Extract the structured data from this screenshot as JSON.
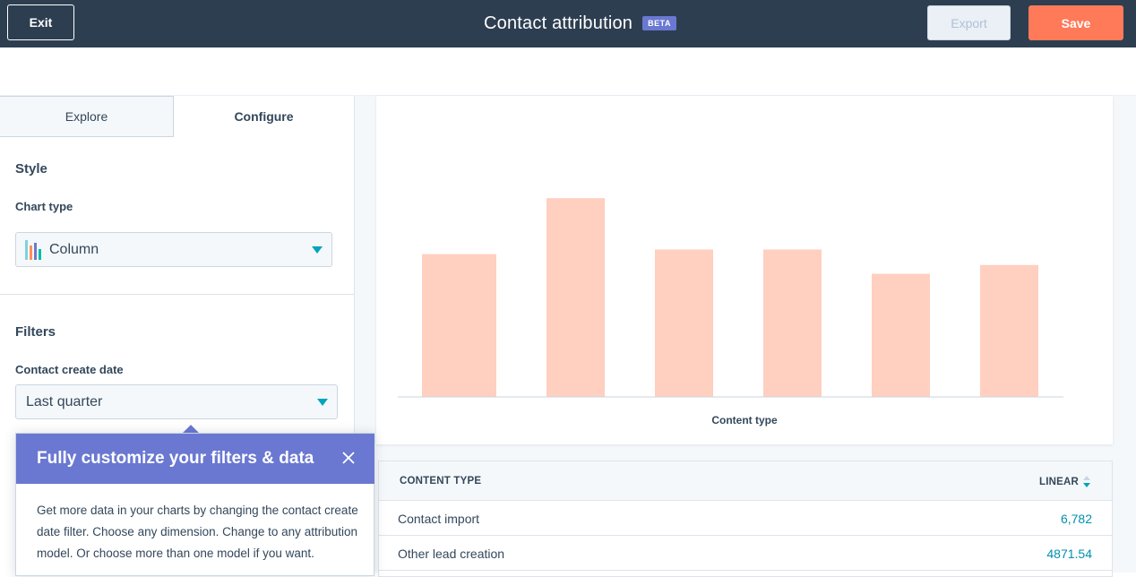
{
  "header": {
    "exit_label": "Exit",
    "title": "Contact attribution",
    "badge": "BETA",
    "export_label": "Export",
    "save_label": "Save"
  },
  "tabs": [
    {
      "label": "Explore",
      "active": false
    },
    {
      "label": "Configure",
      "active": true
    }
  ],
  "style_section": {
    "title": "Style",
    "chart_type_label": "Chart type",
    "chart_type_value": "Column",
    "chart_type_icon": "column-chart-icon"
  },
  "filters_section": {
    "title": "Filters",
    "date_label": "Contact create date",
    "date_value": "Last quarter"
  },
  "popover": {
    "title": "Fully customize your filters & data",
    "body": "Get more data in your charts by changing the contact create date filter. Choose any dimension. Change to any attribution model. Or choose more than one model if you want.",
    "close_icon": "close-icon"
  },
  "chart_data": {
    "type": "bar",
    "xlabel": "Content type",
    "ylabel": "",
    "categories": [
      "",
      "",
      "",
      "",
      "",
      ""
    ],
    "values": [
      4871.54,
      6782,
      5030,
      5030,
      4200,
      4500
    ],
    "ylim": [
      0,
      8000
    ],
    "grid": false,
    "bar_color": "#ffcfc0"
  },
  "table": {
    "columns": [
      "CONTENT TYPE",
      "LINEAR"
    ],
    "rows": [
      {
        "name": "Contact import",
        "value": "6,782"
      },
      {
        "name": "Other lead creation",
        "value": "4871.54"
      }
    ]
  },
  "colors": {
    "header_bg": "#2d3e50",
    "accent": "#00a4bd",
    "save": "#ff7a59",
    "popover": "#6a78d1"
  }
}
